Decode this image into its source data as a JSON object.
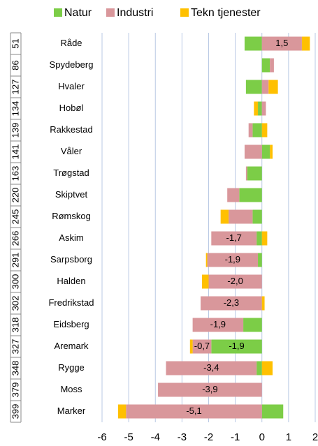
{
  "chart_data": {
    "type": "bar",
    "orientation": "horizontal",
    "stacked": true,
    "categories": [
      "Råde",
      "Spydeberg",
      "Hvaler",
      "Hobøl",
      "Rakkestad",
      "Våler",
      "Trøgstad",
      "Skiptvet",
      "Rømskog",
      "Askim",
      "Sarpsborg",
      "Halden",
      "Fredrikstad",
      "Eidsberg",
      "Aremark",
      "Rygge",
      "Moss",
      "Marker"
    ],
    "ranks": [
      "51",
      "86",
      "127",
      "134",
      "139",
      "141",
      "163",
      "220",
      "245",
      "266",
      "291",
      "300",
      "302",
      "318",
      "327",
      "348",
      "379",
      "399"
    ],
    "series": [
      {
        "name": "Natur",
        "color": "#7ccd47",
        "values": [
          -0.65,
          0.3,
          -0.6,
          -0.15,
          -0.35,
          0.3,
          -0.55,
          -0.85,
          -0.35,
          -0.2,
          -0.15,
          0,
          0,
          -0.7,
          -1.9,
          -0.2,
          0,
          0.8
        ],
        "value_labels": [
          null,
          null,
          null,
          null,
          null,
          null,
          null,
          null,
          null,
          null,
          null,
          null,
          null,
          null,
          "-1,9",
          null,
          null,
          null
        ]
      },
      {
        "name": "Industri",
        "color": "#d9979b",
        "values": [
          1.5,
          0.15,
          0.25,
          0.15,
          -0.15,
          -0.65,
          -0.05,
          -0.45,
          -0.9,
          -1.7,
          -1.9,
          -2.0,
          -2.3,
          -1.9,
          -0.7,
          -3.4,
          -3.9,
          -5.1
        ],
        "value_labels": [
          "1,5",
          null,
          null,
          null,
          null,
          null,
          null,
          null,
          null,
          "-1,7",
          "-1,9",
          "-2,0",
          "-2,3",
          "-1,9",
          "-0,7",
          "-3,4",
          "-3,9",
          "-5,1"
        ]
      },
      {
        "name": "Tekn tjenester",
        "color": "#ffc000",
        "values": [
          0.3,
          0,
          0.35,
          -0.15,
          0.2,
          0.1,
          0,
          0,
          -0.3,
          0.2,
          -0.05,
          -0.25,
          0.1,
          0,
          -0.1,
          0.4,
          0,
          -0.3
        ]
      }
    ],
    "xlim": [
      -6,
      2
    ],
    "xticks": [
      -6,
      -5,
      -4,
      -3,
      -2,
      -1,
      0,
      1,
      2
    ],
    "grid": true,
    "legend": "top"
  }
}
